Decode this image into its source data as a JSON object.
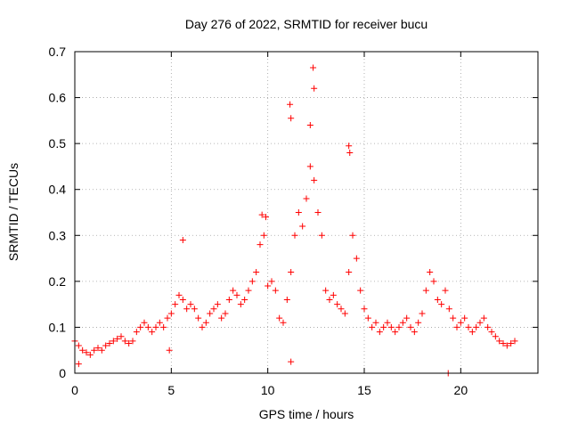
{
  "chart_data": {
    "type": "scatter",
    "title": "Day 276 of 2022, SRMTID for receiver bucu",
    "xlabel": "GPS time / hours",
    "ylabel": "SRMTID / TECUs",
    "xlim": [
      0,
      24
    ],
    "ylim": [
      0,
      0.7
    ],
    "xticks": [
      0,
      5,
      10,
      15,
      20
    ],
    "xtick_labels": [
      "0",
      "5",
      "10",
      "15",
      "20"
    ],
    "yticks": [
      0,
      0.1,
      0.2,
      0.3,
      0.4,
      0.5,
      0.6,
      0.7
    ],
    "ytick_labels": [
      "0",
      "0.1",
      "0.2",
      "0.3",
      "0.4",
      "0.5",
      "0.6",
      "0.7"
    ],
    "grid": true,
    "marker": "+",
    "series": [
      {
        "name": "SRMTID",
        "color": "#ff0000",
        "x": [
          0.0,
          0.2,
          0.4,
          0.6,
          0.8,
          1.0,
          1.2,
          1.4,
          1.6,
          1.8,
          2.0,
          2.2,
          2.4,
          2.6,
          2.8,
          3.0,
          3.2,
          3.4,
          3.6,
          3.8,
          4.0,
          4.2,
          4.4,
          4.6,
          4.8,
          5.0,
          5.2,
          5.4,
          5.6,
          5.8,
          6.0,
          6.2,
          6.4,
          6.6,
          6.8,
          7.0,
          7.2,
          7.4,
          7.6,
          7.8,
          8.0,
          8.2,
          8.4,
          8.6,
          8.8,
          9.0,
          9.2,
          9.4,
          9.6,
          9.8,
          10.0,
          10.2,
          10.4,
          10.6,
          10.8,
          11.0,
          11.2,
          11.4,
          11.6,
          11.8,
          12.0,
          12.2,
          12.4,
          12.6,
          12.8,
          13.0,
          13.2,
          13.4,
          13.6,
          13.8,
          14.0,
          14.2,
          14.4,
          14.6,
          14.8,
          15.0,
          15.2,
          15.4,
          15.6,
          15.8,
          16.0,
          16.2,
          16.4,
          16.6,
          16.8,
          17.0,
          17.2,
          17.4,
          17.6,
          17.8,
          18.0,
          18.2,
          18.4,
          18.6,
          18.8,
          19.0,
          19.2,
          19.4,
          19.6,
          19.8,
          20.0,
          20.2,
          20.4,
          20.6,
          20.8,
          21.0,
          21.2,
          21.4,
          21.6,
          21.8,
          22.0,
          22.2,
          22.4,
          22.6,
          22.8,
          11.15,
          11.2,
          12.35,
          12.4,
          12.2,
          14.2,
          14.25,
          9.7,
          9.9,
          5.6,
          19.35,
          11.2,
          0.2,
          4.9
        ],
        "y": [
          0.07,
          0.06,
          0.05,
          0.045,
          0.04,
          0.05,
          0.055,
          0.05,
          0.06,
          0.065,
          0.07,
          0.075,
          0.08,
          0.07,
          0.065,
          0.07,
          0.09,
          0.1,
          0.11,
          0.1,
          0.09,
          0.1,
          0.11,
          0.1,
          0.12,
          0.13,
          0.15,
          0.17,
          0.16,
          0.14,
          0.15,
          0.14,
          0.12,
          0.1,
          0.11,
          0.13,
          0.14,
          0.15,
          0.12,
          0.13,
          0.16,
          0.18,
          0.17,
          0.15,
          0.16,
          0.18,
          0.2,
          0.22,
          0.28,
          0.3,
          0.19,
          0.2,
          0.18,
          0.12,
          0.11,
          0.16,
          0.22,
          0.3,
          0.35,
          0.32,
          0.38,
          0.45,
          0.42,
          0.35,
          0.3,
          0.18,
          0.16,
          0.17,
          0.15,
          0.14,
          0.13,
          0.22,
          0.3,
          0.25,
          0.18,
          0.14,
          0.12,
          0.1,
          0.11,
          0.09,
          0.1,
          0.11,
          0.1,
          0.09,
          0.1,
          0.11,
          0.12,
          0.1,
          0.09,
          0.11,
          0.13,
          0.18,
          0.22,
          0.2,
          0.16,
          0.15,
          0.18,
          0.14,
          0.12,
          0.1,
          0.11,
          0.12,
          0.1,
          0.09,
          0.1,
          0.11,
          0.12,
          0.1,
          0.09,
          0.08,
          0.07,
          0.065,
          0.06,
          0.065,
          0.07,
          0.585,
          0.555,
          0.665,
          0.62,
          0.54,
          0.495,
          0.48,
          0.345,
          0.34,
          0.29,
          0.0,
          0.025,
          0.02,
          0.05
        ]
      }
    ]
  }
}
